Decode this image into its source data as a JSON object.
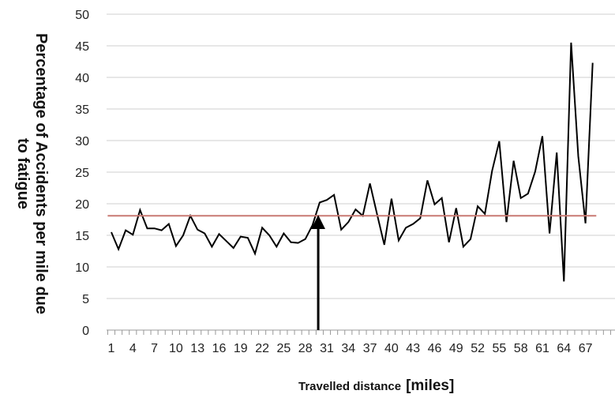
{
  "chart_data": {
    "type": "line",
    "title": "",
    "ylabel_lines": [
      "Percentage of Accidents per mile due",
      "to fatigue"
    ],
    "xlabel": "Travelled distance",
    "xlabel_unit": "[miles]",
    "ylim": [
      0,
      50
    ],
    "yticks": [
      "0",
      "5",
      "10",
      "15",
      "20",
      "25",
      "30",
      "35",
      "40",
      "45",
      "50"
    ],
    "x_tick_labels": [
      "1",
      "4",
      "7",
      "10",
      "13",
      "16",
      "19",
      "22",
      "25",
      "28",
      "31",
      "34",
      "37",
      "40",
      "43",
      "46",
      "49",
      "52",
      "55",
      "58",
      "61",
      "64",
      "67"
    ],
    "grid": true,
    "series": [
      {
        "color": "#000000",
        "x": [
          1,
          2,
          3,
          4,
          5,
          6,
          7,
          8,
          9,
          10,
          11,
          12,
          13,
          14,
          15,
          16,
          17,
          18,
          19,
          20,
          21,
          22,
          23,
          24,
          25,
          26,
          27,
          28,
          29,
          30,
          31,
          32,
          33,
          34,
          35,
          36,
          37,
          38,
          39,
          40,
          41,
          42,
          43,
          44,
          45,
          46,
          47,
          48,
          49,
          50,
          51,
          52,
          53,
          54,
          55,
          56,
          57,
          58,
          59,
          60,
          61,
          62,
          63,
          64,
          65,
          66,
          67,
          68
        ],
        "values": [
          15.5,
          12.8,
          15.8,
          15.1,
          19.0,
          16.1,
          16.1,
          15.8,
          16.8,
          13.3,
          15.0,
          18.1,
          15.9,
          15.3,
          13.2,
          15.2,
          14.1,
          13.0,
          14.8,
          14.6,
          12.1,
          16.2,
          15.0,
          13.2,
          15.3,
          13.9,
          13.8,
          14.4,
          16.6,
          20.2,
          20.6,
          21.4,
          15.9,
          17.1,
          19.1,
          18.1,
          23.2,
          18.3,
          13.5,
          20.8,
          14.2,
          16.2,
          16.8,
          17.7,
          23.7,
          19.9,
          20.9,
          13.9,
          19.3,
          13.2,
          14.4,
          19.6,
          18.4,
          25.2,
          29.9,
          17.1,
          26.8,
          20.9,
          21.6,
          25.1,
          30.7,
          15.3,
          28.1,
          7.7,
          45.5,
          27.5,
          16.9,
          42.3
        ]
      },
      {
        "color": "#c87a73",
        "x": [
          0.5,
          68.5
        ],
        "values": [
          18.1,
          18.1
        ]
      }
    ],
    "annotations": [
      {
        "type": "arrow",
        "x": 29.8,
        "from_y": 0,
        "to_y": 18.1,
        "color": "#000000"
      }
    ]
  }
}
